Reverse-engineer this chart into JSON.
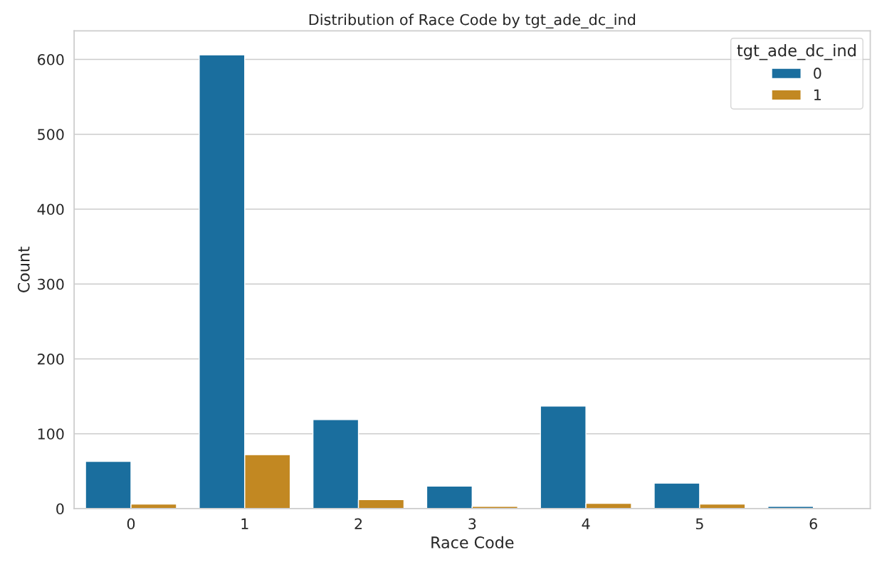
{
  "chart_data": {
    "type": "bar",
    "title": "Distribution of Race Code by tgt_ade_dc_ind",
    "xlabel": "Race Code",
    "ylabel": "Count",
    "legend_title": "tgt_ade_dc_ind",
    "categories": [
      "0",
      "1",
      "2",
      "3",
      "4",
      "5",
      "6"
    ],
    "series": [
      {
        "name": "0",
        "color": "#1a6e9e",
        "values": [
          63,
          606,
          119,
          30,
          137,
          34,
          3
        ]
      },
      {
        "name": "1",
        "color": "#c28822",
        "values": [
          6,
          72,
          12,
          3,
          7,
          6,
          null
        ]
      }
    ],
    "ylim": [
      0,
      638
    ],
    "yticks": [
      0,
      100,
      200,
      300,
      400,
      500,
      600
    ],
    "grid": "y",
    "legend": "top right"
  }
}
